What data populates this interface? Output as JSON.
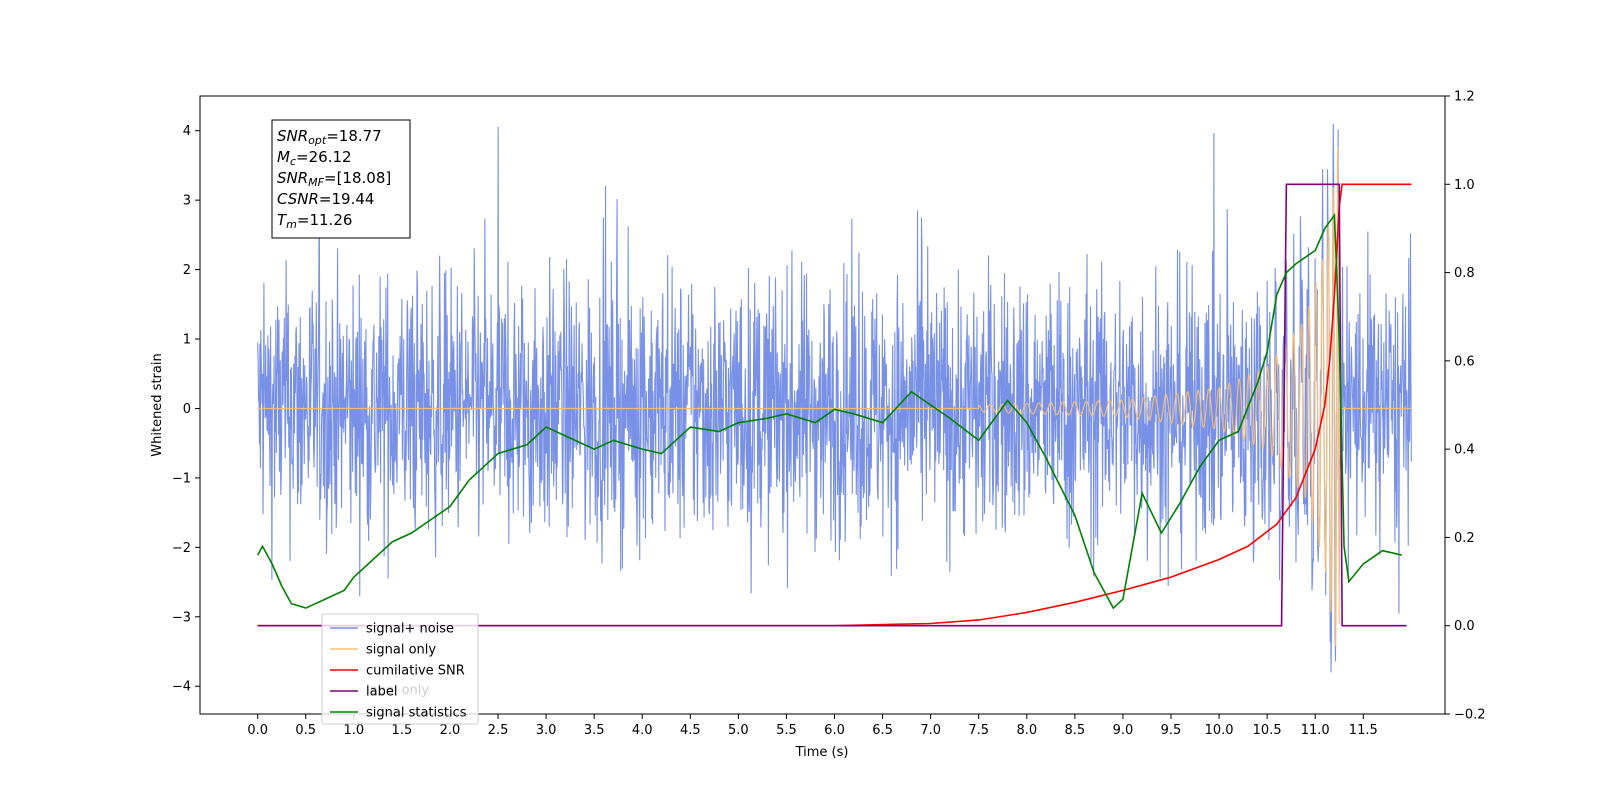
{
  "chart_data": {
    "type": "line",
    "xlabel": "Time (s)",
    "ylabel": "Whitened strain",
    "xlim": [
      -0.6,
      12.35
    ],
    "ylim": [
      -4.4,
      4.5
    ],
    "y2lim": [
      -0.2,
      1.2
    ],
    "x_ticks": [
      "0.0",
      "0.5",
      "1.0",
      "1.5",
      "2.0",
      "2.5",
      "3.0",
      "3.5",
      "4.0",
      "4.5",
      "5.0",
      "5.5",
      "6.0",
      "6.5",
      "7.0",
      "7.5",
      "8.0",
      "8.5",
      "9.0",
      "9.5",
      "10.0",
      "10.5",
      "11.0",
      "11.5"
    ],
    "y_ticks": [
      "4",
      "3",
      "2",
      "1",
      "0",
      "−1",
      "−2",
      "−3",
      "−4"
    ],
    "y2_ticks": [
      "1.2",
      "1.0",
      "0.8",
      "0.6",
      "0.4",
      "0.2",
      "0.0",
      "−0.2"
    ],
    "annotation": [
      {
        "sym": "SNR",
        "sub": "opt",
        "val": "=18.77"
      },
      {
        "sym": "M",
        "sub": "c",
        "val": "=26.12"
      },
      {
        "sym": "SNR",
        "sub": "MF",
        "val": "=[18.08]"
      },
      {
        "sym": "CSNR",
        "sub": "",
        "val": "=19.44"
      },
      {
        "sym": "T",
        "sub": "m",
        "val": "=11.26"
      }
    ],
    "legend": {
      "placement": "lower-left",
      "entries": [
        {
          "label": "signal+ noise",
          "color": "#7891e6"
        },
        {
          "label": "signal only",
          "color": "#fbc070"
        },
        {
          "label": "cumilative SNR",
          "color": "#ff0000"
        },
        {
          "label": "label",
          "color": "#800080"
        },
        {
          "label": "signal statistics",
          "color": "#008000"
        }
      ],
      "overlapped_text": "label only"
    },
    "series": [
      {
        "name": "signal+ noise",
        "axis": "left",
        "color": "#7891e6",
        "description": "noise band roughly between -2.5 and 2.5 with spikes up to 4.1 near t=11.2",
        "x_range": [
          0.0,
          12.0
        ]
      },
      {
        "name": "signal only",
        "axis": "left",
        "color": "#fbc070",
        "chirp_amplitude_points": [
          [
            7.5,
            0.05
          ],
          [
            9.0,
            0.12
          ],
          [
            10.0,
            0.3
          ],
          [
            10.5,
            0.6
          ],
          [
            10.9,
            1.3
          ],
          [
            11.1,
            2.3
          ],
          [
            11.25,
            3.8
          ]
        ],
        "merger_time": 11.26,
        "x_range": [
          0.0,
          12.0
        ]
      },
      {
        "name": "cumilative SNR",
        "axis": "right",
        "color": "#ff0000",
        "x": [
          0.0,
          6.0,
          7.0,
          7.5,
          8.0,
          8.5,
          9.0,
          9.5,
          10.0,
          10.3,
          10.6,
          10.8,
          11.0,
          11.1,
          11.15,
          11.2,
          11.25,
          11.28,
          12.0
        ],
        "y": [
          0.0,
          0.0,
          0.005,
          0.013,
          0.03,
          0.053,
          0.08,
          0.11,
          0.15,
          0.18,
          0.23,
          0.29,
          0.4,
          0.5,
          0.6,
          0.75,
          0.95,
          1.0,
          1.0
        ]
      },
      {
        "name": "label",
        "axis": "right",
        "color": "#800080",
        "x": [
          0.0,
          10.65,
          10.7,
          11.25,
          11.28,
          11.95
        ],
        "y": [
          0.0,
          0.0,
          1.0,
          1.0,
          0.0,
          0.0
        ]
      },
      {
        "name": "signal statistics",
        "axis": "right",
        "color": "#008000",
        "x": [
          0.0,
          0.05,
          0.15,
          0.25,
          0.35,
          0.5,
          0.7,
          0.9,
          1.0,
          1.2,
          1.4,
          1.6,
          1.8,
          2.0,
          2.2,
          2.5,
          2.8,
          3.0,
          3.2,
          3.5,
          3.7,
          4.0,
          4.2,
          4.5,
          4.8,
          5.0,
          5.3,
          5.5,
          5.8,
          6.0,
          6.2,
          6.5,
          6.8,
          7.0,
          7.2,
          7.5,
          7.8,
          8.0,
          8.2,
          8.5,
          8.7,
          8.9,
          9.0,
          9.1,
          9.2,
          9.4,
          9.6,
          9.8,
          10.0,
          10.2,
          10.4,
          10.5,
          10.6,
          10.7,
          10.8,
          11.0,
          11.1,
          11.2,
          11.25,
          11.3,
          11.35,
          11.5,
          11.7,
          11.9
        ],
        "y": [
          0.16,
          0.18,
          0.14,
          0.09,
          0.05,
          0.04,
          0.06,
          0.08,
          0.11,
          0.15,
          0.19,
          0.21,
          0.24,
          0.27,
          0.33,
          0.39,
          0.41,
          0.45,
          0.43,
          0.4,
          0.42,
          0.4,
          0.39,
          0.45,
          0.44,
          0.46,
          0.47,
          0.48,
          0.46,
          0.49,
          0.48,
          0.46,
          0.53,
          0.5,
          0.47,
          0.42,
          0.51,
          0.46,
          0.38,
          0.25,
          0.12,
          0.04,
          0.06,
          0.18,
          0.3,
          0.21,
          0.28,
          0.36,
          0.42,
          0.44,
          0.55,
          0.62,
          0.75,
          0.8,
          0.82,
          0.85,
          0.9,
          0.93,
          0.65,
          0.18,
          0.1,
          0.14,
          0.17,
          0.16
        ]
      }
    ]
  }
}
